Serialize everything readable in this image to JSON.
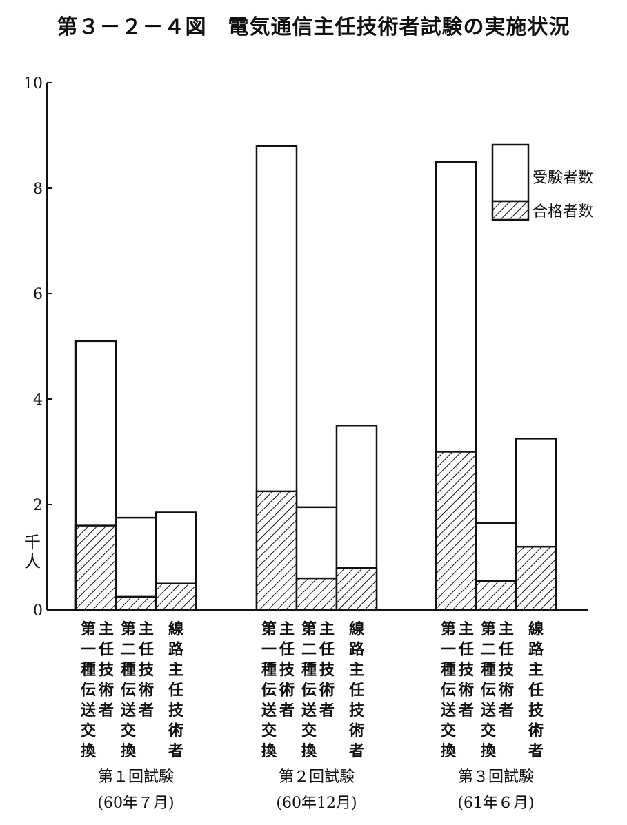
{
  "title": "第３－２－４図　電気通信主任技術者試験の実施状況",
  "chart_data": {
    "type": "bar",
    "stacked": "overlay",
    "ylabel": "千人",
    "ylim": [
      0,
      10
    ],
    "yticks": [
      "0",
      "2",
      "4",
      "6",
      "8",
      "10"
    ],
    "categories": [
      "第一種伝送交換主任技術者",
      "第二種伝送交換主任技術者",
      "線路主任技術者"
    ],
    "category_label_columns": [
      [
        "第一種伝送交換",
        "主任技術者"
      ],
      [
        "第二種伝送交換",
        "主任技術者"
      ],
      [
        "線路主任技術者"
      ]
    ],
    "groups": [
      {
        "label": "第１回試験",
        "date": "(60年７月)"
      },
      {
        "label": "第２回試験",
        "date": "(60年12月)"
      },
      {
        "label": "第３回試験",
        "date": "(61年６月)"
      }
    ],
    "series": [
      {
        "name": "受験者数",
        "values": [
          [
            5.1,
            1.75,
            1.85
          ],
          [
            8.8,
            1.95,
            3.5
          ],
          [
            8.5,
            1.65,
            3.25
          ]
        ]
      },
      {
        "name": "合格者数",
        "values": [
          [
            1.6,
            0.25,
            0.5
          ],
          [
            2.25,
            0.6,
            0.8
          ],
          [
            3.0,
            0.55,
            1.2
          ]
        ]
      }
    ],
    "legend": "top-right",
    "grid": false
  }
}
